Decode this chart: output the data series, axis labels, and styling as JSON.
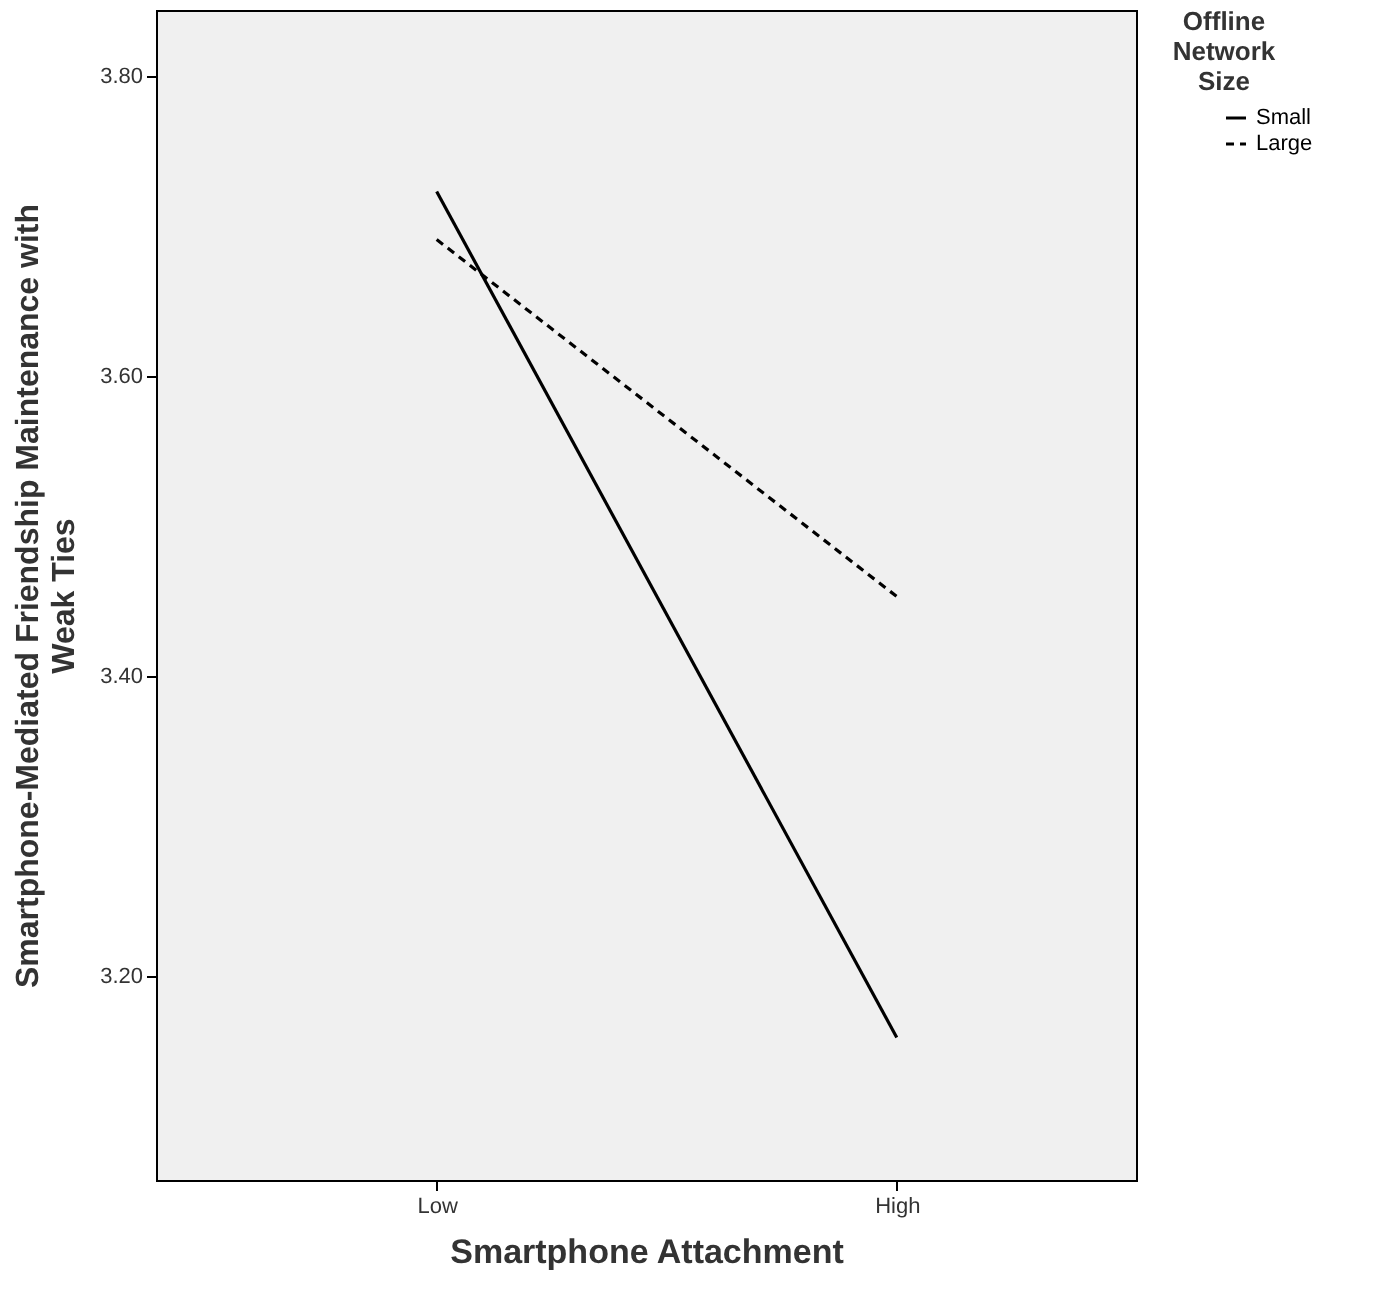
{
  "chart_data": {
    "type": "line",
    "xlabel": "Smartphone Attachment",
    "ylabel": "Smartphone-Mediated Friendship Maintenance with Weak Ties",
    "legend_title": "Offline Network Size",
    "categories": [
      "Low",
      "High"
    ],
    "series": [
      {
        "name": "Small",
        "color": "#000000",
        "line_style": "solid",
        "values": [
          3.723,
          3.159
        ]
      },
      {
        "name": "Large",
        "color": "#000000",
        "line_style": "dashed",
        "values": [
          3.691,
          3.453
        ]
      }
    ],
    "ylim": [
      3.064,
      3.844
    ],
    "yticks": [
      {
        "value": 3.2,
        "label": "3.20"
      },
      {
        "value": 3.4,
        "label": "3.40"
      },
      {
        "value": 3.6,
        "label": "3.60"
      },
      {
        "value": 3.8,
        "label": "3.80"
      }
    ],
    "grid": false,
    "legend": "top right",
    "marker": "none"
  }
}
